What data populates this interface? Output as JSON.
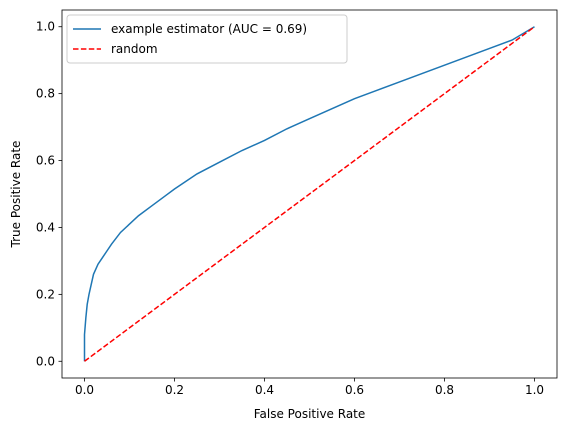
{
  "chart_data": {
    "type": "line",
    "xlabel": "False Positive Rate",
    "ylabel": "True Positive Rate",
    "xlim": [
      -0.05,
      1.05
    ],
    "ylim": [
      -0.05,
      1.05
    ],
    "xticks": [
      0.0,
      0.2,
      0.4,
      0.6,
      0.8,
      1.0
    ],
    "yticks": [
      0.0,
      0.2,
      0.4,
      0.6,
      0.8,
      1.0
    ],
    "xtick_labels": [
      "0.0",
      "0.2",
      "0.4",
      "0.6",
      "0.8",
      "1.0"
    ],
    "ytick_labels": [
      "0.0",
      "0.2",
      "0.4",
      "0.6",
      "0.8",
      "1.0"
    ],
    "grid": false,
    "legend_position": "upper-left",
    "series": [
      {
        "name": "example estimator (AUC = 0.69)",
        "color": "#1f77b4",
        "style": "solid",
        "x": [
          0,
          0.0,
          0.003,
          0.006,
          0.01,
          0.015,
          0.02,
          0.03,
          0.04,
          0.05,
          0.06,
          0.08,
          0.1,
          0.12,
          0.15,
          0.18,
          0.2,
          0.25,
          0.3,
          0.35,
          0.4,
          0.45,
          0.5,
          0.55,
          0.6,
          0.65,
          0.7,
          0.75,
          0.8,
          0.85,
          0.9,
          0.95,
          1.0
        ],
        "y": [
          0,
          0.08,
          0.13,
          0.17,
          0.2,
          0.23,
          0.26,
          0.29,
          0.31,
          0.33,
          0.35,
          0.385,
          0.41,
          0.435,
          0.465,
          0.495,
          0.515,
          0.56,
          0.595,
          0.63,
          0.66,
          0.695,
          0.725,
          0.755,
          0.785,
          0.81,
          0.835,
          0.86,
          0.885,
          0.91,
          0.935,
          0.96,
          1.0
        ]
      },
      {
        "name": "random",
        "color": "#ff0000",
        "style": "dashed",
        "x": [
          0,
          1
        ],
        "y": [
          0,
          1
        ]
      }
    ]
  }
}
